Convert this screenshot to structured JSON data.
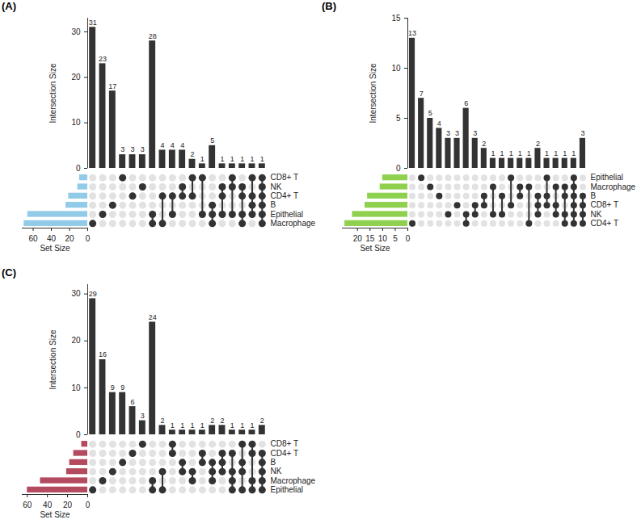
{
  "chart_data": [
    {
      "type": "upset",
      "title": "(A)",
      "color": "#92cbe8",
      "data_labels": true,
      "y_label": "Intersection Size",
      "ylim": [
        0,
        33
      ],
      "yticks": [
        0,
        10,
        20,
        30
      ],
      "set_size_label": "Set Size",
      "set_size_lim": [
        0,
        72
      ],
      "set_size_ticks": [
        0,
        20,
        40,
        60
      ],
      "sets": [
        "CD8+ T",
        "NK",
        "CD4+ T",
        "B",
        "Epithelial",
        "Macrophage"
      ],
      "set_sizes": [
        9,
        11,
        21,
        24,
        66,
        70
      ],
      "intersections": [
        {
          "sets": [
            "Macrophage"
          ],
          "value": 31
        },
        {
          "sets": [
            "Epithelial"
          ],
          "value": 23
        },
        {
          "sets": [
            "B"
          ],
          "value": 17
        },
        {
          "sets": [
            "CD8+ T"
          ],
          "value": 3
        },
        {
          "sets": [
            "CD4+ T"
          ],
          "value": 3
        },
        {
          "sets": [
            "NK"
          ],
          "value": 3
        },
        {
          "sets": [
            "Epithelial",
            "Macrophage"
          ],
          "value": 28
        },
        {
          "sets": [
            "CD4+ T",
            "Macrophage"
          ],
          "value": 4
        },
        {
          "sets": [
            "CD4+ T",
            "Epithelial"
          ],
          "value": 4
        },
        {
          "sets": [
            "NK",
            "CD4+ T"
          ],
          "value": 4
        },
        {
          "sets": [
            "CD8+ T",
            "CD4+ T"
          ],
          "value": 2
        },
        {
          "sets": [
            "CD8+ T",
            "Epithelial"
          ],
          "value": 1
        },
        {
          "sets": [
            "B",
            "Epithelial",
            "Macrophage"
          ],
          "value": 5
        },
        {
          "sets": [
            "NK",
            "CD4+ T",
            "Epithelial"
          ],
          "value": 1
        },
        {
          "sets": [
            "CD8+ T",
            "NK",
            "Epithelial"
          ],
          "value": 1
        },
        {
          "sets": [
            "NK",
            "CD4+ T",
            "Epithelial",
            "Macrophage"
          ],
          "value": 1
        },
        {
          "sets": [
            "CD8+ T",
            "CD4+ T",
            "B",
            "Epithelial"
          ],
          "value": 1
        },
        {
          "sets": [
            "CD8+ T",
            "NK",
            "CD4+ T",
            "B",
            "Epithelial",
            "Macrophage"
          ],
          "value": 1
        }
      ]
    },
    {
      "type": "upset",
      "title": "(B)",
      "color": "#8fd14f",
      "data_labels": true,
      "y_label": "Intersection Size",
      "ylim": [
        0,
        15
      ],
      "yticks": [
        0,
        5,
        10,
        15
      ],
      "set_size_label": "Set Size",
      "set_size_lim": [
        0,
        26
      ],
      "set_size_ticks": [
        0,
        5,
        10,
        15,
        20
      ],
      "sets": [
        "Epithelial",
        "Macrophage",
        "B",
        "CD8+ T",
        "NK",
        "CD4+ T"
      ],
      "set_sizes": [
        10,
        11,
        16,
        17,
        22,
        25
      ],
      "intersections": [
        {
          "sets": [
            "CD4+ T"
          ],
          "value": 13
        },
        {
          "sets": [
            "Epithelial"
          ],
          "value": 7
        },
        {
          "sets": [
            "Macrophage"
          ],
          "value": 5
        },
        {
          "sets": [
            "B"
          ],
          "value": 4
        },
        {
          "sets": [
            "NK"
          ],
          "value": 3
        },
        {
          "sets": [
            "CD8+ T"
          ],
          "value": 3
        },
        {
          "sets": [
            "NK",
            "CD4+ T"
          ],
          "value": 6
        },
        {
          "sets": [
            "CD8+ T",
            "NK"
          ],
          "value": 3
        },
        {
          "sets": [
            "B",
            "CD8+ T"
          ],
          "value": 2
        },
        {
          "sets": [
            "Macrophage",
            "NK"
          ],
          "value": 1
        },
        {
          "sets": [
            "B",
            "NK"
          ],
          "value": 1
        },
        {
          "sets": [
            "Epithelial",
            "CD8+ T"
          ],
          "value": 1
        },
        {
          "sets": [
            "Macrophage",
            "B"
          ],
          "value": 1
        },
        {
          "sets": [
            "Macrophage",
            "CD4+ T"
          ],
          "value": 1
        },
        {
          "sets": [
            "B",
            "CD8+ T",
            "NK"
          ],
          "value": 2
        },
        {
          "sets": [
            "Epithelial",
            "B",
            "CD8+ T"
          ],
          "value": 1
        },
        {
          "sets": [
            "Macrophage",
            "CD8+ T",
            "NK"
          ],
          "value": 1
        },
        {
          "sets": [
            "Macrophage",
            "B",
            "NK",
            "CD4+ T"
          ],
          "value": 1
        },
        {
          "sets": [
            "Epithelial",
            "Macrophage",
            "B",
            "CD8+ T",
            "NK",
            "CD4+ T"
          ],
          "value": 1
        },
        {
          "sets": [
            "B",
            "CD8+ T",
            "NK",
            "CD4+ T"
          ],
          "value": 3
        }
      ]
    },
    {
      "type": "upset",
      "title": "(C)",
      "color": "#b44a5f",
      "data_labels": true,
      "y_label": "Intersection Size",
      "ylim": [
        0,
        32
      ],
      "yticks": [
        0,
        10,
        20,
        30
      ],
      "set_size_label": "Set Size",
      "set_size_lim": [
        0,
        65
      ],
      "set_size_ticks": [
        0,
        20,
        40,
        60
      ],
      "sets": [
        "CD8+ T",
        "CD4+ T",
        "B",
        "NK",
        "Macrophage",
        "Epithelial"
      ],
      "set_sizes": [
        6,
        14,
        18,
        21,
        47,
        60
      ],
      "intersections": [
        {
          "sets": [
            "Epithelial"
          ],
          "value": 29
        },
        {
          "sets": [
            "Macrophage"
          ],
          "value": 16
        },
        {
          "sets": [
            "NK"
          ],
          "value": 9
        },
        {
          "sets": [
            "B"
          ],
          "value": 9
        },
        {
          "sets": [
            "CD4+ T"
          ],
          "value": 6
        },
        {
          "sets": [
            "CD8+ T"
          ],
          "value": 3
        },
        {
          "sets": [
            "Macrophage",
            "Epithelial"
          ],
          "value": 24
        },
        {
          "sets": [
            "NK",
            "Epithelial"
          ],
          "value": 2
        },
        {
          "sets": [
            "CD8+ T",
            "CD4+ T"
          ],
          "value": 1
        },
        {
          "sets": [
            "B",
            "NK"
          ],
          "value": 1
        },
        {
          "sets": [
            "NK",
            "Macrophage"
          ],
          "value": 1
        },
        {
          "sets": [
            "CD4+ T",
            "B"
          ],
          "value": 1
        },
        {
          "sets": [
            "B",
            "NK",
            "Macrophage"
          ],
          "value": 2
        },
        {
          "sets": [
            "CD4+ T",
            "B",
            "NK"
          ],
          "value": 2
        },
        {
          "sets": [
            "CD4+ T",
            "NK",
            "Macrophage",
            "Epithelial"
          ],
          "value": 1
        },
        {
          "sets": [
            "CD8+ T",
            "B",
            "NK",
            "Epithelial"
          ],
          "value": 1
        },
        {
          "sets": [
            "CD8+ T",
            "CD4+ T",
            "Macrophage",
            "Epithelial"
          ],
          "value": 1
        },
        {
          "sets": [
            "CD4+ T",
            "B",
            "NK",
            "Macrophage",
            "Epithelial"
          ],
          "value": 2
        }
      ]
    }
  ]
}
